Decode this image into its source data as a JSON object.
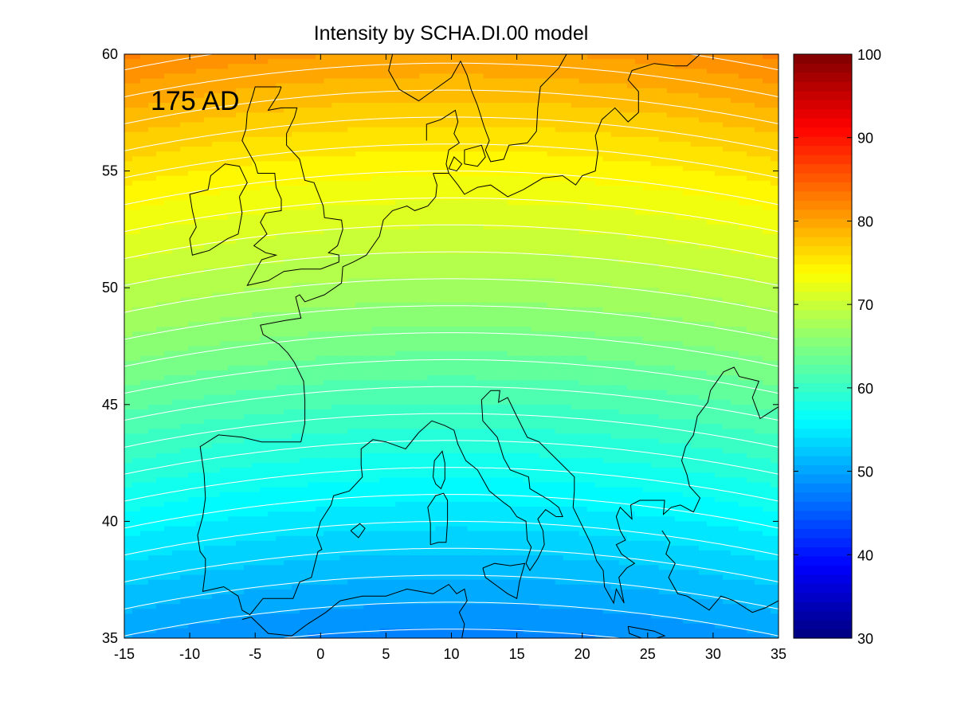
{
  "chart_data": {
    "type": "heatmap",
    "title": "Intensity by SCHA.DI.00 model",
    "annotation": "175 AD",
    "xlim": [
      -15,
      35
    ],
    "ylim": [
      35,
      60
    ],
    "x_ticks": [
      -15,
      -10,
      -5,
      0,
      5,
      10,
      15,
      20,
      25,
      30,
      35
    ],
    "y_ticks": [
      35,
      40,
      45,
      50,
      55,
      60
    ],
    "colorbar": {
      "range": [
        30,
        100
      ],
      "ticks": [
        30,
        40,
        50,
        60,
        70,
        80,
        90,
        100
      ],
      "colormap": "jet"
    },
    "grid": false,
    "field": {
      "description_values": "intensity decreasing from north to south",
      "samples": [
        {
          "lat": 60,
          "lon": -15,
          "value": 81
        },
        {
          "lat": 60,
          "lon": 35,
          "value": 82
        },
        {
          "lat": 55,
          "lon": 0,
          "value": 79
        },
        {
          "lat": 50,
          "lon": 10,
          "value": 72
        },
        {
          "lat": 45,
          "lon": 10,
          "value": 65
        },
        {
          "lat": 40,
          "lon": 10,
          "value": 56
        },
        {
          "lat": 35,
          "lon": -15,
          "value": 49
        },
        {
          "lat": 35,
          "lon": 35,
          "value": 50
        }
      ]
    },
    "contour_interval": 1.5,
    "colors": {
      "coastline": "#000000",
      "contour": "#ffffff"
    }
  }
}
